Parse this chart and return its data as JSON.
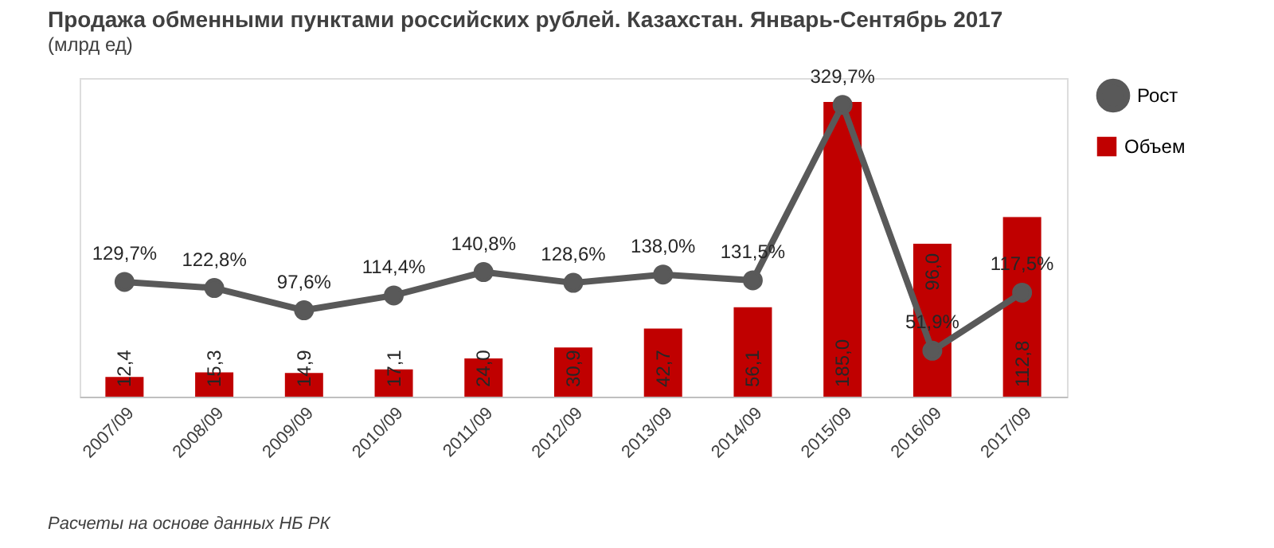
{
  "chart_data": {
    "type": "bar",
    "title": "Продажа обменными пунктами российских рублей. Казахстан. Январь-Сентябрь 2017",
    "subtitle": "(млрд ед)",
    "categories": [
      "2007/09",
      "2008/09",
      "2009/09",
      "2010/09",
      "2011/09",
      "2012/09",
      "2013/09",
      "2014/09",
      "2015/09",
      "2016/09",
      "2017/09"
    ],
    "series": [
      {
        "name": "Объем",
        "color": "#c00000",
        "values": [
          12.4,
          15.3,
          14.9,
          17.1,
          24.0,
          30.9,
          42.7,
          56.1,
          185.0,
          96.0,
          112.8
        ],
        "value_labels": [
          "12,4",
          "15,3",
          "14,9",
          "17,1",
          "24,0",
          "30,9",
          "42,7",
          "56,1",
          "185,0",
          "96,0",
          "112,8"
        ]
      },
      {
        "name": "Рост",
        "type": "line",
        "axis": "y2",
        "color": "#595959",
        "values": [
          129.7,
          122.8,
          97.6,
          114.4,
          140.8,
          128.6,
          138.0,
          131.5,
          329.7,
          51.9,
          117.5
        ],
        "value_labels": [
          "129,7%",
          "122,8%",
          "97,6%",
          "114,4%",
          "140,8%",
          "128,6%",
          "138,0%",
          "131,5%",
          "329,7%",
          "51,9%",
          "117,5%"
        ]
      }
    ],
    "ylim": [
      0,
      200
    ],
    "y2lim": [
      0,
      360
    ],
    "tick_labels": "x",
    "grid": false,
    "legend": "right",
    "marker": "circle",
    "annotations": [
      "Расчеты на основе данных НБ РК"
    ]
  }
}
